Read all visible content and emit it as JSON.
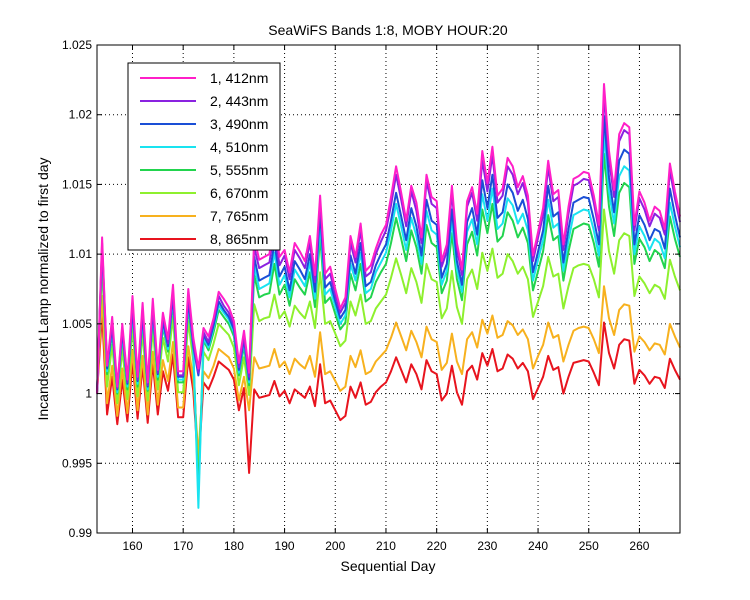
{
  "chart_data": {
    "type": "line",
    "title": "SeaWiFS Bands 1:8, MOBY HOUR:20",
    "xlabel": "Sequential Day",
    "ylabel": "Incandescent Lamp normalized to first day",
    "xlim": [
      153,
      268
    ],
    "ylim": [
      0.99,
      1.025
    ],
    "x_ticks": [
      160,
      170,
      180,
      190,
      200,
      210,
      220,
      230,
      240,
      250,
      260
    ],
    "y_ticks": [
      0.99,
      0.995,
      1,
      1.005,
      1.01,
      1.015,
      1.02,
      1.025
    ],
    "y_tick_labels": [
      "0.99",
      "0.995",
      "1",
      "1.005",
      "1.01",
      "1.015",
      "1.02",
      "1.025"
    ],
    "grid": true,
    "legend_position": "top-left",
    "x": [
      153,
      154,
      155,
      156,
      157,
      158,
      159,
      160,
      161,
      162,
      163,
      164,
      165,
      166,
      167,
      168,
      169,
      170,
      171,
      172,
      173,
      174,
      175,
      176,
      177,
      178,
      179,
      180,
      181,
      182,
      183,
      184,
      185,
      186,
      187,
      188,
      189,
      190,
      191,
      192,
      193,
      194,
      195,
      196,
      197,
      198,
      199,
      200,
      201,
      202,
      203,
      204,
      205,
      206,
      207,
      208,
      209,
      210,
      211,
      212,
      213,
      214,
      215,
      216,
      217,
      218,
      219,
      220,
      221,
      222,
      223,
      224,
      225,
      226,
      227,
      228,
      229,
      230,
      231,
      232,
      233,
      234,
      235,
      236,
      237,
      238,
      239,
      240,
      241,
      242,
      243,
      244,
      245,
      246,
      247,
      248,
      249,
      250,
      251,
      252,
      253,
      254,
      255,
      256,
      257,
      258,
      259,
      260,
      261,
      262,
      263,
      264,
      265,
      266,
      267,
      268
    ],
    "series": [
      {
        "name": "1, 412nm",
        "color": "#ff1fc8",
        "values": [
          1.0,
          1.0112,
          1.002,
          1.0055,
          1.0005,
          1.005,
          1.001,
          1.007,
          1.0012,
          1.0065,
          1.0008,
          1.0068,
          1.0017,
          1.0058,
          1.0039,
          1.0078,
          1.0016,
          1.0016,
          1.0075,
          1.004,
          1.0018,
          1.0047,
          1.0041,
          1.0054,
          1.0073,
          1.0068,
          1.0062,
          1.0052,
          1.0022,
          1.0045,
          1.0015,
          1.0112,
          1.0096,
          1.0098,
          1.01,
          1.0124,
          1.0098,
          1.0103,
          1.0087,
          1.0108,
          1.0102,
          1.0095,
          1.0113,
          1.0085,
          1.0142,
          1.0086,
          1.0091,
          1.0075,
          1.0061,
          1.0069,
          1.0113,
          1.0098,
          1.0122,
          1.0088,
          1.0092,
          1.0104,
          1.0114,
          1.0121,
          1.0141,
          1.0163,
          1.0144,
          1.0124,
          1.0149,
          1.0137,
          1.0112,
          1.0157,
          1.0141,
          1.0138,
          1.0095,
          1.0107,
          1.0149,
          1.0108,
          1.0089,
          1.0138,
          1.0148,
          1.0129,
          1.0174,
          1.0151,
          1.0177,
          1.0142,
          1.0147,
          1.0169,
          1.0163,
          1.0148,
          1.0156,
          1.0142,
          1.0099,
          1.0116,
          1.0133,
          1.0167,
          1.0143,
          1.0146,
          1.0107,
          1.0134,
          1.0154,
          1.0156,
          1.0159,
          1.0158,
          1.0142,
          1.0121,
          1.0222,
          1.0174,
          1.0146,
          1.0186,
          1.0194,
          1.0191,
          1.0121,
          1.0145,
          1.0137,
          1.0124,
          1.0134,
          1.0131,
          1.0118,
          1.0165,
          1.0145,
          1.0127
        ]
      },
      {
        "name": "2, 443nm",
        "color": "#8a22e0",
        "values": [
          1.0,
          1.0108,
          1.002,
          1.005,
          1.0004,
          1.0047,
          1.0008,
          1.0065,
          1.001,
          1.006,
          1.0006,
          1.0063,
          1.0015,
          1.0055,
          1.0036,
          1.0073,
          1.0013,
          1.0013,
          1.007,
          1.0036,
          1.0015,
          1.0044,
          1.0037,
          1.0052,
          1.007,
          1.0063,
          1.0058,
          1.0049,
          1.0019,
          1.0041,
          1.0012,
          1.0105,
          1.009,
          1.0092,
          1.0094,
          1.0117,
          1.0092,
          1.0099,
          1.0082,
          1.0103,
          1.0097,
          1.009,
          1.0108,
          1.008,
          1.0138,
          1.0082,
          1.0086,
          1.0071,
          1.0058,
          1.0065,
          1.0108,
          1.0094,
          1.0117,
          1.0084,
          1.0087,
          1.01,
          1.0109,
          1.0117,
          1.0135,
          1.0157,
          1.0139,
          1.012,
          1.0145,
          1.0131,
          1.0108,
          1.0152,
          1.0136,
          1.0133,
          1.0091,
          1.0102,
          1.0144,
          1.0104,
          1.0085,
          1.0134,
          1.0144,
          1.0124,
          1.0167,
          1.0145,
          1.0171,
          1.0137,
          1.0142,
          1.0163,
          1.0157,
          1.0143,
          1.0151,
          1.0137,
          1.0095,
          1.0112,
          1.0128,
          1.0162,
          1.0138,
          1.0141,
          1.0103,
          1.0129,
          1.0149,
          1.0151,
          1.0154,
          1.0153,
          1.0137,
          1.0117,
          1.0215,
          1.0168,
          1.0141,
          1.0181,
          1.0189,
          1.0186,
          1.0117,
          1.014,
          1.0132,
          1.012,
          1.0129,
          1.0126,
          1.0114,
          1.016,
          1.014,
          1.0123
        ]
      },
      {
        "name": "3, 490nm",
        "color": "#1a4fd6",
        "values": [
          1.0,
          1.0105,
          1.0018,
          1.0048,
          1.0003,
          1.0045,
          1.0007,
          1.0062,
          1.0009,
          1.0057,
          1.0005,
          1.006,
          1.0014,
          1.0052,
          1.0034,
          1.007,
          1.0012,
          1.0012,
          1.0067,
          1.0034,
          1.0013,
          1.0042,
          1.0035,
          1.0049,
          1.0066,
          1.006,
          1.0055,
          1.0046,
          1.0017,
          1.0039,
          1.001,
          1.0098,
          1.0081,
          1.0083,
          1.0085,
          1.0108,
          1.0084,
          1.0091,
          1.0074,
          1.0095,
          1.0089,
          1.0082,
          1.01,
          1.0073,
          1.013,
          1.0076,
          1.008,
          1.0066,
          1.0054,
          1.006,
          1.0099,
          1.0086,
          1.0108,
          1.0077,
          1.008,
          1.0092,
          1.01,
          1.0107,
          1.0124,
          1.0144,
          1.0127,
          1.011,
          1.0133,
          1.012,
          1.0099,
          1.0139,
          1.0124,
          1.0121,
          1.0083,
          1.0093,
          1.0132,
          1.0095,
          1.0078,
          1.0123,
          1.0133,
          1.0114,
          1.0153,
          1.0133,
          1.0157,
          1.0126,
          1.013,
          1.015,
          1.0144,
          1.0131,
          1.0139,
          1.0125,
          1.0087,
          1.0102,
          1.0117,
          1.0149,
          1.0127,
          1.013,
          1.0094,
          1.0118,
          1.0137,
          1.0139,
          1.0141,
          1.014,
          1.0125,
          1.0107,
          1.0199,
          1.0155,
          1.013,
          1.0167,
          1.0175,
          1.0172,
          1.0107,
          1.0128,
          1.0121,
          1.011,
          1.0118,
          1.0116,
          1.0104,
          1.0147,
          1.0128,
          1.0112
        ]
      },
      {
        "name": "4, 510nm",
        "color": "#19e3f0",
        "values": [
          1.0,
          1.0104,
          1.0016,
          1.0046,
          1.0001,
          1.0043,
          1.0005,
          1.006,
          1.0007,
          1.0055,
          1.0003,
          1.0058,
          1.0012,
          1.005,
          1.0032,
          1.0068,
          1.001,
          1.001,
          1.0065,
          1.0032,
          0.9918,
          1.004,
          1.0033,
          1.0047,
          1.0063,
          1.0058,
          1.0053,
          1.0044,
          1.0015,
          1.0037,
          1.0008,
          1.0092,
          1.0075,
          1.0077,
          1.0079,
          1.0101,
          1.0078,
          1.0085,
          1.0069,
          1.0089,
          1.0083,
          1.0077,
          1.0094,
          1.0068,
          1.0122,
          1.0071,
          1.0075,
          1.0062,
          1.005,
          1.0056,
          1.0093,
          1.0081,
          1.0101,
          1.0072,
          1.0075,
          1.0087,
          1.0094,
          1.0101,
          1.0117,
          1.0136,
          1.012,
          1.0103,
          1.0126,
          1.0113,
          1.0093,
          1.0131,
          1.0117,
          1.0114,
          1.0078,
          1.0088,
          1.0124,
          1.0089,
          1.0073,
          1.0116,
          1.0125,
          1.0107,
          1.0143,
          1.0124,
          1.0147,
          1.0118,
          1.0122,
          1.014,
          1.0135,
          1.0122,
          1.0129,
          1.0117,
          1.0081,
          1.0096,
          1.011,
          1.0139,
          1.0119,
          1.0122,
          1.0088,
          1.011,
          1.0128,
          1.013,
          1.0132,
          1.0131,
          1.0117,
          1.0099,
          1.0186,
          1.0145,
          1.0122,
          1.0156,
          1.0163,
          1.016,
          1.01,
          1.012,
          1.0113,
          1.0103,
          1.0111,
          1.0108,
          1.0097,
          1.0137,
          1.012,
          1.0105
        ]
      },
      {
        "name": "5, 555nm",
        "color": "#22d44e",
        "values": [
          1.0,
          1.0102,
          1.0014,
          1.0044,
          1.0,
          1.0041,
          1.0003,
          1.0058,
          1.0005,
          1.0053,
          1.0002,
          1.0056,
          1.001,
          1.0048,
          1.003,
          1.0065,
          1.0008,
          1.0008,
          1.0062,
          1.003,
          0.9928,
          1.0038,
          1.0031,
          1.0044,
          1.006,
          1.0055,
          1.005,
          1.0041,
          1.0013,
          1.0034,
          1.0006,
          1.0085,
          1.0069,
          1.0071,
          1.0072,
          1.0093,
          1.0071,
          1.0078,
          1.0063,
          1.0082,
          1.0076,
          1.0071,
          1.0087,
          1.0062,
          1.0113,
          1.0065,
          1.0069,
          1.0057,
          1.0046,
          1.0051,
          1.0086,
          1.0074,
          1.0093,
          1.0066,
          1.0069,
          1.008,
          1.0087,
          1.0093,
          1.0108,
          1.0126,
          1.0111,
          1.0095,
          1.0117,
          1.0105,
          1.0086,
          1.0121,
          1.0108,
          1.0105,
          1.0072,
          1.0081,
          1.0115,
          1.0082,
          1.0067,
          1.0107,
          1.0116,
          1.0099,
          1.0132,
          1.0115,
          1.0136,
          1.0109,
          1.0113,
          1.013,
          1.0124,
          1.0112,
          1.0119,
          1.0108,
          1.0074,
          1.0088,
          1.0102,
          1.0128,
          1.011,
          1.0113,
          1.0081,
          1.0102,
          1.0118,
          1.012,
          1.0122,
          1.0121,
          1.0108,
          1.0091,
          1.0172,
          1.0134,
          1.0113,
          1.0144,
          1.0151,
          1.0148,
          1.0093,
          1.0111,
          1.0105,
          1.0095,
          1.0103,
          1.01,
          1.009,
          1.0127,
          1.0111,
          1.0098
        ]
      },
      {
        "name": "6, 670nm",
        "color": "#8ef02e",
        "values": [
          1.0,
          1.0092,
          1.0005,
          1.0035,
          0.9993,
          1.0032,
          0.9996,
          1.0048,
          0.9998,
          1.0044,
          0.9995,
          1.0047,
          1.0003,
          1.004,
          1.0023,
          1.0055,
          1.0001,
          1.0001,
          1.0052,
          1.0023,
          0.9938,
          1.003,
          1.0024,
          1.0036,
          1.005,
          1.0046,
          1.0042,
          1.0033,
          1.0006,
          1.0026,
          0.9999,
          1.0064,
          1.0052,
          1.0054,
          1.0055,
          1.0071,
          1.0054,
          1.0059,
          1.0048,
          1.0063,
          1.0058,
          1.0054,
          1.0066,
          1.0047,
          1.0087,
          1.005,
          1.0052,
          1.0043,
          1.0034,
          1.0038,
          1.0066,
          1.0056,
          1.0071,
          1.005,
          1.0052,
          1.0061,
          1.0066,
          1.0071,
          1.0083,
          1.0097,
          1.0085,
          1.0072,
          1.009,
          1.008,
          1.0065,
          1.0093,
          1.0082,
          1.008,
          1.0054,
          1.0061,
          1.0088,
          1.0062,
          1.005,
          1.0082,
          1.0089,
          1.0075,
          1.0101,
          1.0088,
          1.0104,
          1.0083,
          1.0086,
          1.01,
          1.0095,
          1.0086,
          1.0091,
          1.0082,
          1.0055,
          1.0066,
          1.0077,
          1.0098,
          1.0084,
          1.0086,
          1.0061,
          1.0077,
          1.009,
          1.0092,
          1.0093,
          1.0092,
          1.0082,
          1.0069,
          1.0132,
          1.0102,
          1.0086,
          1.011,
          1.0115,
          1.0113,
          1.007,
          1.0084,
          1.0079,
          1.0072,
          1.0078,
          1.0076,
          1.0068,
          1.0096,
          1.0084,
          1.0074
        ]
      },
      {
        "name": "7, 765nm",
        "color": "#f7b11e",
        "values": [
          1.0,
          1.007,
          0.9993,
          1.002,
          0.9984,
          1.0018,
          0.9986,
          1.0031,
          0.9988,
          1.0027,
          0.9985,
          1.003,
          0.9992,
          1.0024,
          1.0009,
          1.0037,
          0.999,
          0.999,
          1.0034,
          1.001,
          0.9955,
          1.0016,
          1.0011,
          1.002,
          1.0032,
          1.0029,
          1.0026,
          1.0018,
          0.9995,
          1.0012,
          0.9988,
          1.0026,
          1.0018,
          1.0019,
          1.002,
          1.0032,
          1.0019,
          1.0023,
          1.0014,
          1.0025,
          1.0021,
          1.0018,
          1.0027,
          1.0012,
          1.0044,
          1.0014,
          1.0016,
          1.0009,
          1.0002,
          1.0005,
          1.0027,
          1.0019,
          1.0031,
          1.0014,
          1.0016,
          1.0023,
          1.0027,
          1.0031,
          1.004,
          1.0051,
          1.0041,
          1.0031,
          1.0045,
          1.0037,
          1.0026,
          1.0048,
          1.0039,
          1.0037,
          1.0017,
          1.0022,
          1.0043,
          1.0023,
          1.0014,
          1.0039,
          1.0044,
          1.0033,
          1.0053,
          1.0043,
          1.0056,
          1.004,
          1.0042,
          1.0052,
          1.0049,
          1.0042,
          1.0046,
          1.0039,
          1.0018,
          1.0027,
          1.0035,
          1.0051,
          1.004,
          1.0042,
          1.0023,
          1.0035,
          1.0045,
          1.0047,
          1.0048,
          1.0047,
          1.0039,
          1.0029,
          1.0077,
          1.0054,
          1.0042,
          1.006,
          1.0064,
          1.0063,
          1.003,
          1.0041,
          1.0037,
          1.0031,
          1.0036,
          1.0035,
          1.0028,
          1.005,
          1.0041,
          1.0033
        ]
      },
      {
        "name": "8, 865nm",
        "color": "#e8141e",
        "values": [
          1.0,
          1.0058,
          0.9985,
          1.0012,
          0.9978,
          1.001,
          0.998,
          1.0023,
          0.9982,
          1.002,
          0.9979,
          1.0022,
          0.9985,
          1.0016,
          1.0002,
          1.0028,
          0.9983,
          0.9983,
          1.0026,
          1.0002,
          0.9947,
          1.0008,
          1.0003,
          1.0012,
          1.0023,
          1.002,
          1.0017,
          1.001,
          0.9988,
          1.0004,
          0.9943,
          1.0003,
          0.9997,
          0.9998,
          0.9999,
          1.0009,
          0.9998,
          1.0002,
          0.9993,
          1.0003,
          1.0,
          0.9997,
          1.0005,
          0.9991,
          1.0021,
          0.9993,
          0.9995,
          0.9988,
          0.9981,
          0.9984,
          1.0005,
          0.9997,
          1.0008,
          0.9992,
          0.9994,
          1.0001,
          1.0005,
          1.0008,
          1.0016,
          1.0026,
          1.0017,
          1.0008,
          1.0021,
          1.0014,
          1.0003,
          1.0024,
          1.0016,
          1.0014,
          0.9995,
          1.0,
          1.002,
          1.0001,
          0.9992,
          1.0016,
          1.002,
          1.001,
          1.0029,
          1.002,
          1.0032,
          1.0016,
          1.0018,
          1.0028,
          1.0025,
          1.0018,
          1.0022,
          1.0016,
          0.9996,
          1.0004,
          1.0012,
          1.0027,
          1.0017,
          1.0019,
          1.0,
          1.0012,
          1.0022,
          1.0023,
          1.0024,
          1.0023,
          1.0015,
          1.0006,
          1.0051,
          1.0029,
          1.0018,
          1.0035,
          1.0039,
          1.0038,
          1.0007,
          1.0017,
          1.0013,
          1.0007,
          1.0012,
          1.0011,
          1.0004,
          1.0025,
          1.0017,
          1.001
        ]
      }
    ]
  }
}
